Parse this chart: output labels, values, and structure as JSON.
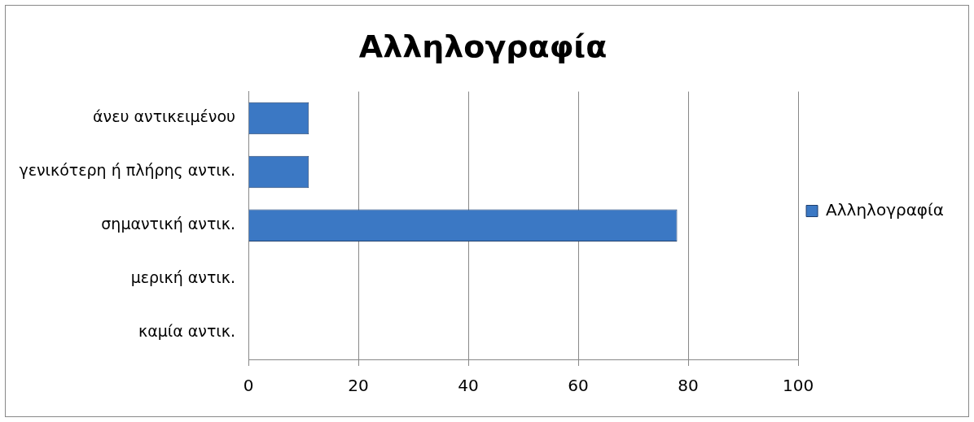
{
  "chart_data": {
    "type": "bar",
    "orientation": "horizontal",
    "title": "Αλληλογραφία",
    "categories": [
      "άνευ αντικειμένου",
      "γενικότερη ή πλήρης αντικ.",
      "σημαντική αντικ.",
      "μερική αντικ.",
      "καμία αντικ."
    ],
    "series": [
      {
        "name": "Αλληλογραφία",
        "color": "#3b78c4",
        "values": [
          11,
          11,
          78,
          0,
          0
        ]
      }
    ],
    "xlim": [
      0,
      100
    ],
    "xticks": [
      0,
      20,
      40,
      60,
      80,
      100
    ],
    "grid": "x",
    "legend": "right"
  }
}
